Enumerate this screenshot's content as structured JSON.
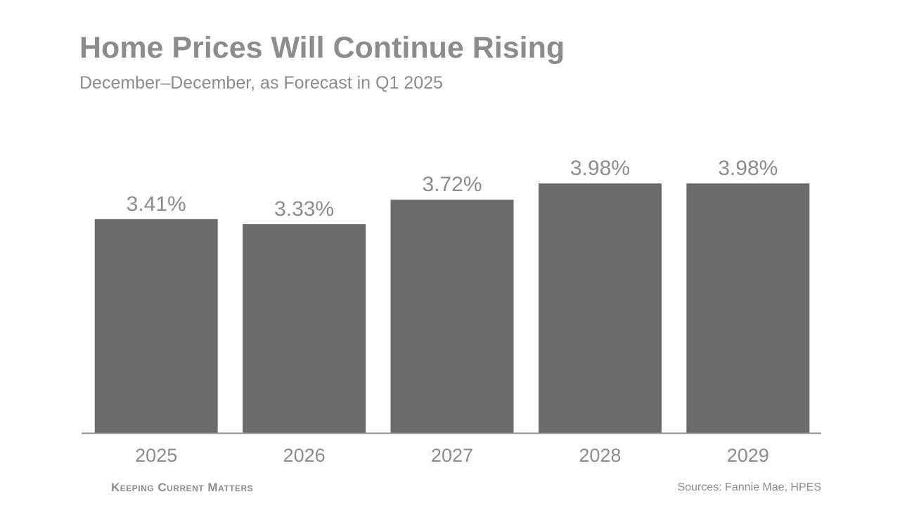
{
  "header": {
    "title": "Home Prices Will Continue Rising",
    "subtitle": "December–December, as Forecast in Q1 2025"
  },
  "footer": {
    "logo_text": "Keeping Current Matters",
    "source": "Sources: Fannie Mae, HPES"
  },
  "colors": {
    "bar": "#6b6b6b",
    "text": "#8c8c8c",
    "axis": "#8c8c8c"
  },
  "chart_data": {
    "type": "bar",
    "title": "Home Prices Will Continue Rising",
    "subtitle": "December–December, as Forecast in Q1 2025",
    "categories": [
      "2025",
      "2026",
      "2027",
      "2028",
      "2029"
    ],
    "values": [
      3.41,
      3.33,
      3.72,
      3.98,
      3.98
    ],
    "data_labels": [
      "3.41%",
      "3.33%",
      "3.72%",
      "3.98%",
      "3.98%"
    ],
    "xlabel": "",
    "ylabel": "",
    "ylim": [
      0,
      4.5
    ],
    "grid": false,
    "legend": "none"
  }
}
